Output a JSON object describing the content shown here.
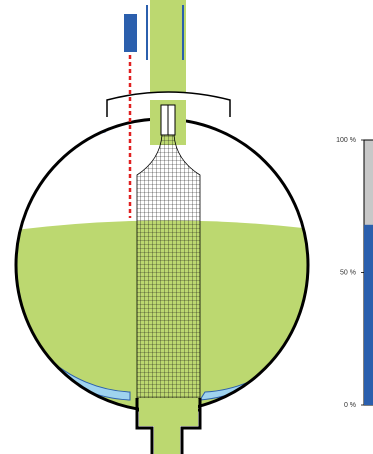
{
  "gauge": {
    "ticks": [
      {
        "value": 100,
        "label": "100 %"
      },
      {
        "value": 50,
        "label": "50 %"
      },
      {
        "value": 0,
        "label": "0 %"
      }
    ],
    "level": 68
  }
}
